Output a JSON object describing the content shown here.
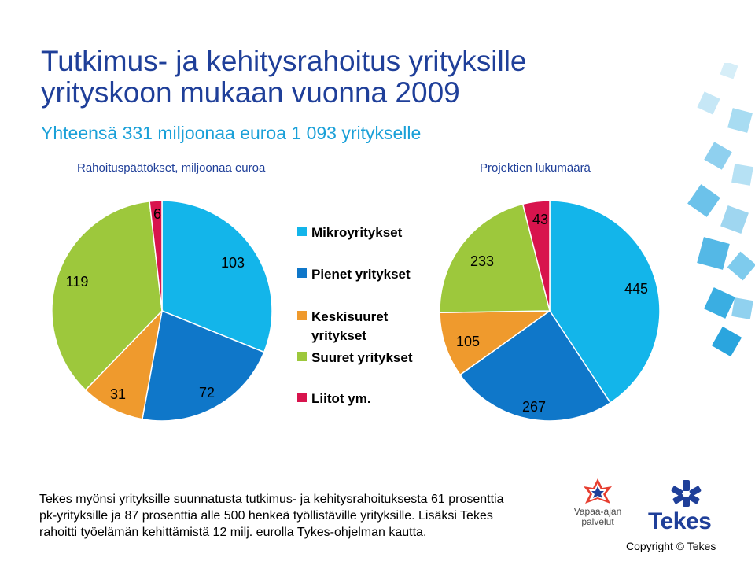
{
  "title_line1": "Tutkimus- ja kehitysrahoitus yrityksille",
  "title_line2": "yrityskoon mukaan vuonna 2009",
  "subtitle": "Yhteensä 331 miljoonaa euroa 1 093 yritykselle",
  "chart_data": [
    {
      "type": "pie",
      "title": "Rahoituspäätökset, miljoonaa euroa",
      "categories": [
        "Mikroyritykset",
        "Pienet yritykset",
        "Keskisuuret yritykset",
        "Suuret yritykset",
        "Liitot ym."
      ],
      "values": [
        103,
        72,
        31,
        119,
        6
      ],
      "colors": [
        "#13b5ea",
        "#0f77c9",
        "#ef9a2d",
        "#9dc83c",
        "#d8144d"
      ],
      "labels": [
        "103",
        "72",
        "31",
        "119",
        "6"
      ]
    },
    {
      "type": "pie",
      "title": "Projektien lukumäärä",
      "categories": [
        "Mikroyritykset",
        "Pienet yritykset",
        "Keskisuuret yritykset",
        "Suuret yritykset",
        "Liitot ym."
      ],
      "values": [
        445,
        267,
        105,
        233,
        43
      ],
      "colors": [
        "#13b5ea",
        "#0f77c9",
        "#ef9a2d",
        "#9dc83c",
        "#d8144d"
      ],
      "labels": [
        "445",
        "267",
        "105",
        "233",
        "43"
      ]
    }
  ],
  "legend": {
    "items": [
      {
        "label_lines": [
          "Mikroyritykset"
        ],
        "color": "#13b5ea"
      },
      {
        "label_lines": [
          "Pienet  yritykset"
        ],
        "color": "#0f77c9"
      },
      {
        "label_lines": [
          "Keskisuuret",
          "yritykset"
        ],
        "color": "#ef9a2d"
      },
      {
        "label_lines": [
          "Suuret yritykset"
        ],
        "color": "#9dc83c"
      },
      {
        "label_lines": [
          "Liitot ym."
        ],
        "color": "#d8144d"
      }
    ]
  },
  "body_text": {
    "line1": "Tekes myönsi yrityksille suunnatusta tutkimus- ja kehitysrahoituksesta 61 prosenttia",
    "line2": "pk-yrityksille ja 87 prosenttia alle 500 henkeä työllistäville yrityksille. Lisäksi Tekes",
    "line3": "rahoitti työelämän kehittämistä 12 milj. eurolla Tykes-ohjelman kautta."
  },
  "vapaa_logo": {
    "line1": "Vapaa-ajan",
    "line2": "palvelut"
  },
  "tekes_logo": {
    "word": "Tekes"
  },
  "copyright": "Copyright © Tekes"
}
